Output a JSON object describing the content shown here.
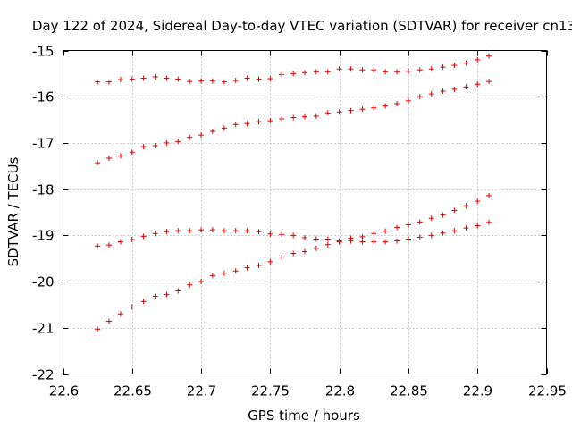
{
  "chart_data": {
    "type": "scatter",
    "title": "Day 122 of 2024, Sidereal Day-to-day VTEC variation (SDTVAR) for receiver cn13",
    "xlabel": "GPS time / hours",
    "ylabel": "SDTVAR / TECUs",
    "xlim": [
      22.6,
      22.95
    ],
    "ylim": [
      -22,
      -15
    ],
    "xticks": [
      22.6,
      22.65,
      22.7,
      22.75,
      22.8,
      22.85,
      22.9,
      22.95
    ],
    "xtick_labels": [
      "22.6",
      "22.65",
      "22.7",
      "22.75",
      "22.8",
      "22.85",
      "22.9",
      "22.95"
    ],
    "yticks": [
      -22,
      -21,
      -20,
      -19,
      -18,
      -17,
      -16,
      -15
    ],
    "ytick_labels": [
      "-22",
      "-21",
      "-20",
      "-19",
      "-18",
      "-17",
      "-16",
      "-15"
    ],
    "grid": true,
    "marker": "+",
    "marker_color": "#e00000",
    "x": [
      22.625,
      22.6333,
      22.6417,
      22.65,
      22.6583,
      22.6667,
      22.675,
      22.6833,
      22.6917,
      22.7,
      22.7083,
      22.7167,
      22.725,
      22.7333,
      22.7417,
      22.75,
      22.7583,
      22.7667,
      22.775,
      22.7833,
      22.7917,
      22.8,
      22.8083,
      22.8167,
      22.825,
      22.8333,
      22.8417,
      22.85,
      22.8583,
      22.8667,
      22.875,
      22.8833,
      22.8917,
      22.9,
      22.9083
    ],
    "series": [
      {
        "name": "series-1",
        "values": [
          -15.68,
          -15.68,
          -15.63,
          -15.62,
          -15.6,
          -15.57,
          -15.6,
          -15.62,
          -15.67,
          -15.66,
          -15.66,
          -15.68,
          -15.65,
          -15.6,
          -15.62,
          -15.61,
          -15.52,
          -15.5,
          -15.48,
          -15.46,
          -15.46,
          -15.4,
          -15.4,
          -15.42,
          -15.42,
          -15.46,
          -15.46,
          -15.45,
          -15.42,
          -15.4,
          -15.36,
          -15.32,
          -15.27,
          -15.2,
          -15.12
        ]
      },
      {
        "name": "series-2",
        "values": [
          -17.43,
          -17.33,
          -17.28,
          -17.2,
          -17.08,
          -17.06,
          -17.0,
          -16.97,
          -16.88,
          -16.83,
          -16.75,
          -16.68,
          -16.6,
          -16.58,
          -16.54,
          -16.52,
          -16.48,
          -16.45,
          -16.43,
          -16.42,
          -16.35,
          -16.33,
          -16.3,
          -16.27,
          -16.24,
          -16.2,
          -16.15,
          -16.09,
          -16.0,
          -15.94,
          -15.88,
          -15.84,
          -15.79,
          -15.73,
          -15.67
        ]
      },
      {
        "name": "series-3",
        "values": [
          -19.23,
          -19.21,
          -19.14,
          -19.09,
          -19.02,
          -18.96,
          -18.92,
          -18.9,
          -18.9,
          -18.88,
          -18.88,
          -18.9,
          -18.9,
          -18.9,
          -18.92,
          -18.97,
          -18.98,
          -19.0,
          -19.05,
          -19.08,
          -19.08,
          -19.12,
          -19.06,
          -19.03,
          -18.96,
          -18.91,
          -18.83,
          -18.77,
          -18.71,
          -18.63,
          -18.56,
          -18.46,
          -18.36,
          -18.26,
          -18.14
        ]
      },
      {
        "name": "series-4",
        "values": [
          -21.03,
          -20.86,
          -20.7,
          -20.55,
          -20.43,
          -20.32,
          -20.28,
          -20.2,
          -20.07,
          -20.0,
          -19.87,
          -19.82,
          -19.77,
          -19.7,
          -19.65,
          -19.57,
          -19.47,
          -19.39,
          -19.35,
          -19.28,
          -19.2,
          -19.14,
          -19.12,
          -19.14,
          -19.14,
          -19.14,
          -19.12,
          -19.08,
          -19.04,
          -19.0,
          -18.95,
          -18.9,
          -18.84,
          -18.79,
          -18.72
        ]
      }
    ]
  }
}
